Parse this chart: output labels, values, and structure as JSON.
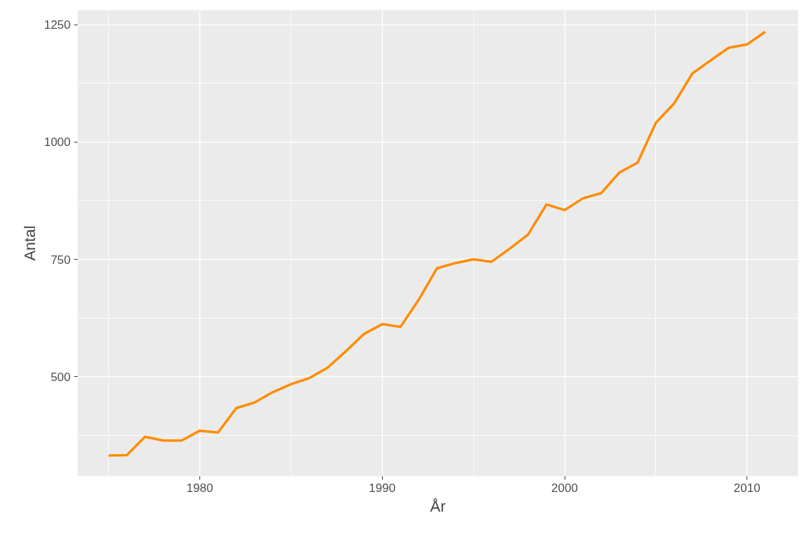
{
  "chart_data": {
    "type": "line",
    "xlabel": "År",
    "ylabel": "Antal",
    "x": [
      1975,
      1976,
      1977,
      1978,
      1979,
      1980,
      1981,
      1982,
      1983,
      1984,
      1985,
      1986,
      1987,
      1988,
      1989,
      1990,
      1991,
      1992,
      1993,
      1994,
      1995,
      1996,
      1997,
      1998,
      1999,
      2000,
      2001,
      2002,
      2003,
      2004,
      2005,
      2006,
      2007,
      2008,
      2009,
      2010,
      2011
    ],
    "series": [
      {
        "color": "#ff8c00",
        "values": [
          332,
          333,
          372,
          364,
          364,
          385,
          381,
          433,
          445,
          467,
          484,
          497,
          519,
          554,
          591,
          612,
          606,
          664,
          731,
          742,
          750,
          745,
          773,
          803,
          867,
          855,
          880,
          891,
          935,
          956,
          1041,
          1082,
          1146,
          1174,
          1201,
          1208,
          1235
        ]
      }
    ],
    "xlim": [
      1973.3,
      2012.8
    ],
    "ylim": [
      288,
      1281
    ],
    "xticks": [
      1980,
      1990,
      2000,
      2010
    ],
    "yticks": [
      500,
      750,
      1000,
      1250
    ],
    "grid": true,
    "marker": "none",
    "line_style": "solid"
  }
}
